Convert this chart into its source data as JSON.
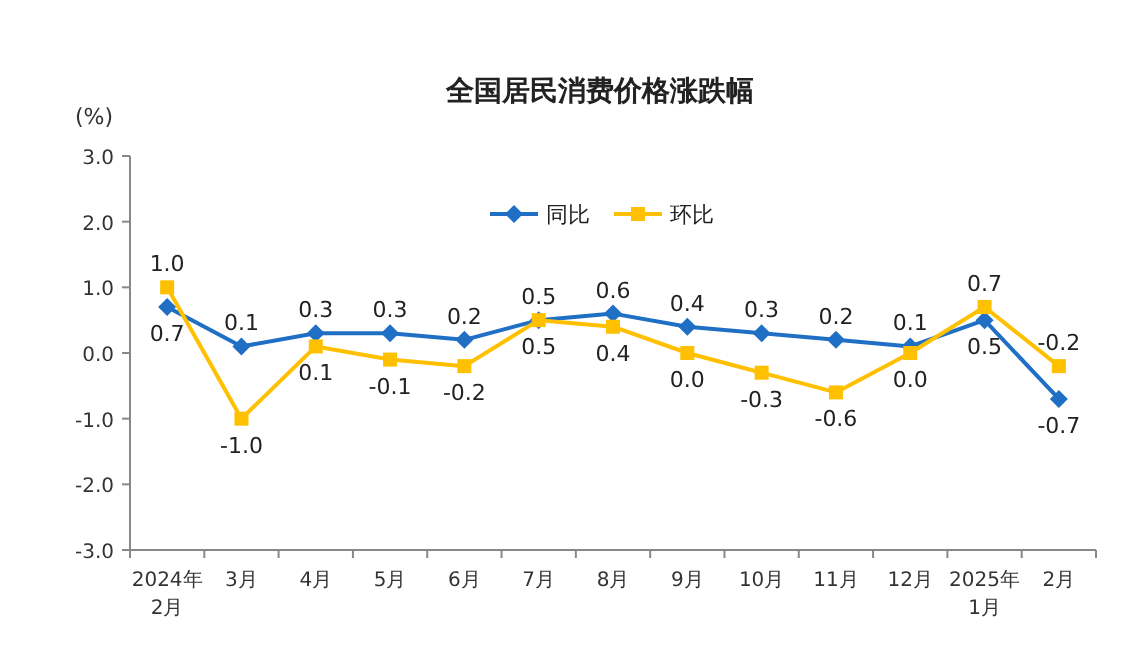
{
  "chart_data": {
    "type": "line",
    "title": "全国居民消费价格涨跌幅",
    "ylabel": "(%)",
    "categories": [
      "2024年\n2月",
      "3月",
      "4月",
      "5月",
      "6月",
      "7月",
      "8月",
      "9月",
      "10月",
      "11月",
      "12月",
      "2025年\n1月",
      "2月"
    ],
    "series": [
      {
        "name": "同比",
        "color": "#1f6fc5",
        "marker": "diamond",
        "values": [
          0.7,
          0.1,
          0.3,
          0.3,
          0.2,
          0.5,
          0.6,
          0.4,
          0.3,
          0.2,
          0.1,
          0.5,
          -0.7
        ],
        "value_labels": [
          "0.7",
          "0.1",
          "0.3",
          "0.3",
          "0.2",
          "0.5",
          "0.6",
          "0.4",
          "0.3",
          "0.2",
          "0.1",
          "0.5",
          "-0.7"
        ]
      },
      {
        "name": "环比",
        "color": "#ffc000",
        "marker": "square",
        "values": [
          1.0,
          -1.0,
          0.1,
          -0.1,
          -0.2,
          0.5,
          0.4,
          0.0,
          -0.3,
          -0.6,
          0.0,
          0.7,
          -0.2
        ],
        "value_labels": [
          "1.0",
          "-1.0",
          "0.1",
          "-0.1",
          "-0.2",
          "0.5",
          "0.4",
          "0.0",
          "-0.3",
          "-0.6",
          "0.0",
          "0.7",
          "-0.2"
        ]
      }
    ],
    "ylim": [
      -3,
      3
    ],
    "yticks": [
      {
        "value": 3,
        "label": "3.0"
      },
      {
        "value": 2,
        "label": "2.0"
      },
      {
        "value": 1,
        "label": "1.0"
      },
      {
        "value": 0,
        "label": "0.0"
      },
      {
        "value": -1,
        "label": "-1.0"
      },
      {
        "value": -2,
        "label": "-2.0"
      },
      {
        "value": -3,
        "label": "-3.0"
      }
    ],
    "grid": false,
    "legend": "top",
    "line_style": "solid"
  }
}
